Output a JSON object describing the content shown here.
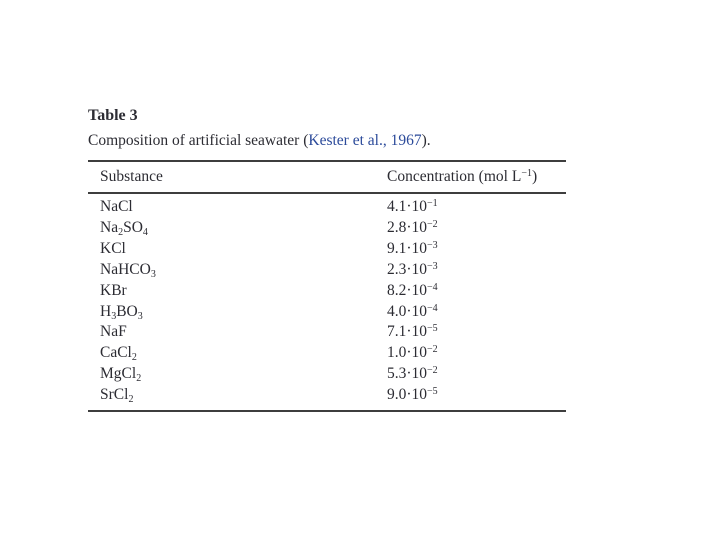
{
  "colors": {
    "text": "#2c2c33",
    "rule": "#3e3e3e",
    "link": "#2b4a9a",
    "bg": "#ffffff"
  },
  "table3": {
    "label": "Table 3",
    "caption": {
      "prefix": "Composition of artificial seawater (",
      "link": "Kester et al., 1967",
      "suffix": ")."
    },
    "header": {
      "col1": "Substance",
      "col2_prefix": "Concentration (mol L",
      "col2_sup": "−1",
      "col2_suffix": ")"
    },
    "multiplier": "·10",
    "rows": [
      {
        "substance": [
          {
            "t": "NaCl"
          }
        ],
        "mantissa": "4.1",
        "exponent": "−1"
      },
      {
        "substance": [
          {
            "t": "Na"
          },
          {
            "t": "2",
            "sub": true
          },
          {
            "t": "SO"
          },
          {
            "t": "4",
            "sub": true
          }
        ],
        "mantissa": "2.8",
        "exponent": "−2"
      },
      {
        "substance": [
          {
            "t": "KCl"
          }
        ],
        "mantissa": "9.1",
        "exponent": "−3"
      },
      {
        "substance": [
          {
            "t": "NaHCO"
          },
          {
            "t": "3",
            "sub": true
          }
        ],
        "mantissa": "2.3",
        "exponent": "−3"
      },
      {
        "substance": [
          {
            "t": "KBr"
          }
        ],
        "mantissa": "8.2",
        "exponent": "−4"
      },
      {
        "substance": [
          {
            "t": "H"
          },
          {
            "t": "3",
            "sub": true
          },
          {
            "t": "BO"
          },
          {
            "t": "3",
            "sub": true
          }
        ],
        "mantissa": "4.0",
        "exponent": "−4"
      },
      {
        "substance": [
          {
            "t": "NaF"
          }
        ],
        "mantissa": "7.1",
        "exponent": "−5"
      },
      {
        "substance": [
          {
            "t": "CaCl"
          },
          {
            "t": "2",
            "sub": true
          }
        ],
        "mantissa": "1.0",
        "exponent": "−2"
      },
      {
        "substance": [
          {
            "t": "MgCl"
          },
          {
            "t": "2",
            "sub": true
          }
        ],
        "mantissa": "5.3",
        "exponent": "−2"
      },
      {
        "substance": [
          {
            "t": "SrCl"
          },
          {
            "t": "2",
            "sub": true
          }
        ],
        "mantissa": "9.0",
        "exponent": "−5"
      }
    ]
  },
  "chart_data": {
    "type": "table",
    "title": "Table 3 — Composition of artificial seawater (Kester et al., 1967).",
    "columns": [
      "Substance",
      "Concentration (mol L⁻¹)"
    ],
    "rows": [
      [
        "NaCl",
        "4.1·10⁻¹"
      ],
      [
        "Na₂SO₄",
        "2.8·10⁻²"
      ],
      [
        "KCl",
        "9.1·10⁻³"
      ],
      [
        "NaHCO₃",
        "2.3·10⁻³"
      ],
      [
        "KBr",
        "8.2·10⁻⁴"
      ],
      [
        "H₃BO₃",
        "4.0·10⁻⁴"
      ],
      [
        "NaF",
        "7.1·10⁻⁵"
      ],
      [
        "CaCl₂",
        "1.0·10⁻²"
      ],
      [
        "MgCl₂",
        "5.3·10⁻²"
      ],
      [
        "SrCl₂",
        "9.0·10⁻⁵"
      ]
    ],
    "values_mol_per_L": [
      0.41,
      0.028,
      0.0091,
      0.0023,
      0.00082,
      0.0004,
      7.1e-05,
      0.01,
      0.053,
      9e-05
    ]
  }
}
